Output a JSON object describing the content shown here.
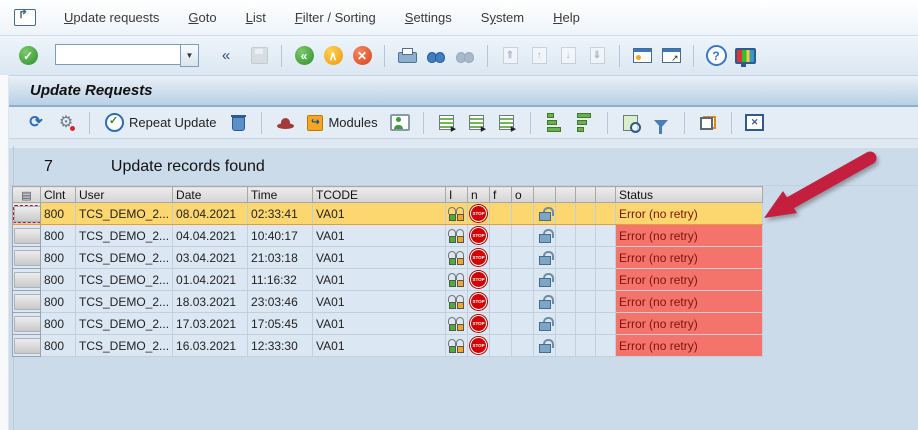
{
  "menu": {
    "items": [
      {
        "label": "Update requests",
        "u": 0
      },
      {
        "label": "Goto",
        "u": 0
      },
      {
        "label": "List",
        "u": 0
      },
      {
        "label": "Filter / Sorting",
        "u": 0
      },
      {
        "label": "Settings",
        "u": 0
      },
      {
        "label": "System",
        "u": 1
      },
      {
        "label": "Help",
        "u": 0
      }
    ]
  },
  "toolbar": {
    "command_value": "",
    "collapse_label": "«",
    "dropdown_glyph": "▼"
  },
  "icons": {
    "enter": "✓",
    "back": "«",
    "up": "∧",
    "exit": "✕",
    "first_page": "⇑",
    "page_up": "↑",
    "page_down": "↓",
    "last_page": "⇓",
    "help": "?",
    "refresh": "⟳",
    "gear": "⚙",
    "modules_arrow": "↪",
    "header_info": "✕",
    "select_all": "▤",
    "stop": "STOP"
  },
  "title": "Update Requests",
  "app_toolbar": {
    "repeat_update_label": "Repeat Update",
    "modules_label": "Modules"
  },
  "summary": {
    "count": "7",
    "label": "Update records found"
  },
  "table": {
    "columns": [
      "Clnt",
      "User",
      "Date",
      "Time",
      "TCODE",
      "I",
      "n",
      "f",
      "o",
      "",
      "",
      "",
      "",
      "Status"
    ],
    "rows": [
      {
        "clnt": "800",
        "user": "TCS_DEMO_2...",
        "date": "08.04.2021",
        "time": "02:33:41",
        "tcode": "VA01",
        "status": "Error (no retry)",
        "selected": true
      },
      {
        "clnt": "800",
        "user": "TCS_DEMO_2...",
        "date": "04.04.2021",
        "time": "10:40:17",
        "tcode": "VA01",
        "status": "Error (no retry)",
        "selected": false
      },
      {
        "clnt": "800",
        "user": "TCS_DEMO_2...",
        "date": "03.04.2021",
        "time": "21:03:18",
        "tcode": "VA01",
        "status": "Error (no retry)",
        "selected": false
      },
      {
        "clnt": "800",
        "user": "TCS_DEMO_2...",
        "date": "01.04.2021",
        "time": "11:16:32",
        "tcode": "VA01",
        "status": "Error (no retry)",
        "selected": false
      },
      {
        "clnt": "800",
        "user": "TCS_DEMO_2...",
        "date": "18.03.2021",
        "time": "23:03:46",
        "tcode": "VA01",
        "status": "Error (no retry)",
        "selected": false
      },
      {
        "clnt": "800",
        "user": "TCS_DEMO_2...",
        "date": "17.03.2021",
        "time": "17:05:45",
        "tcode": "VA01",
        "status": "Error (no retry)",
        "selected": false
      },
      {
        "clnt": "800",
        "user": "TCS_DEMO_2...",
        "date": "16.03.2021",
        "time": "12:33:30",
        "tcode": "VA01",
        "status": "Error (no retry)",
        "selected": false
      }
    ]
  },
  "colors": {
    "selected_row_bg": "#fcd66f",
    "selected_row_border": "#e89b3c",
    "error_bg": "#f4736b",
    "error_text": "#7c150c",
    "annotation_arrow": "#c41f3e",
    "content_bg": "#ccdbea"
  }
}
